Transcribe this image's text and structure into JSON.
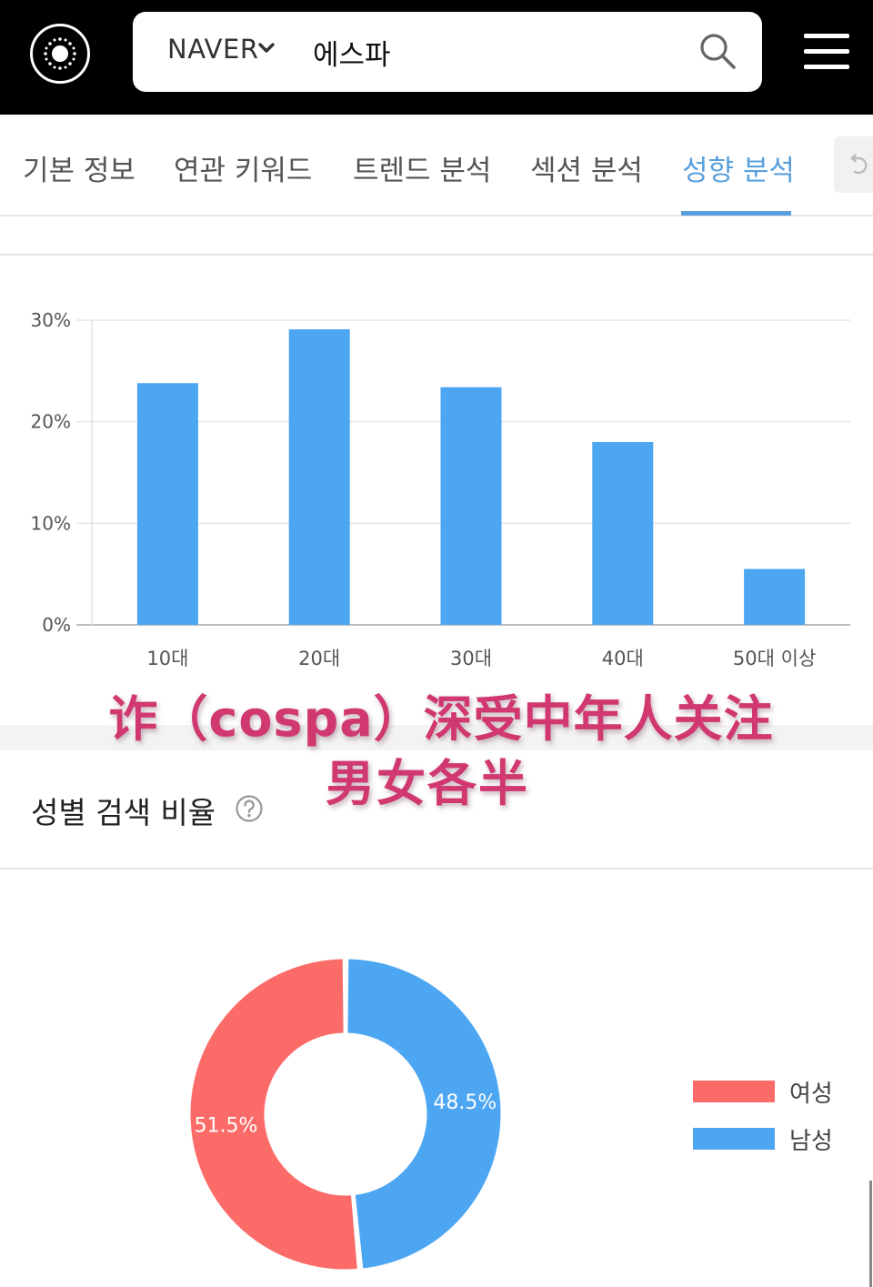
{
  "header": {
    "engine_label": "NAVER",
    "query": "에스파",
    "icons": [
      "logo-icon",
      "chevron-down-icon",
      "search-icon",
      "menu-icon"
    ]
  },
  "tabs": [
    {
      "label": "기본 정보",
      "active": false
    },
    {
      "label": "연관 키워드",
      "active": false
    },
    {
      "label": "트렌드 분석",
      "active": false
    },
    {
      "label": "섹션 분석",
      "active": false
    },
    {
      "label": "성향 분석",
      "active": true
    }
  ],
  "colors": {
    "accent": "#5aa0dc",
    "bar": "#4da6f2",
    "female": "#fb6c69",
    "male": "#4da6f2",
    "caption": "#d0386f"
  },
  "age_chart": {
    "type": "bar",
    "categories": [
      "10대",
      "20대",
      "30대",
      "40대",
      "50대 이상"
    ],
    "values": [
      23.8,
      29.1,
      23.4,
      18.0,
      5.5
    ],
    "yticks": [
      "0%",
      "10%",
      "20%",
      "30%"
    ],
    "ylim": [
      0,
      30
    ],
    "grid": true
  },
  "overlay": {
    "line1": "诈（cospa）深受中年人关注",
    "line2": "男女各半"
  },
  "gender": {
    "title": "성별 검색 비율",
    "help_icon": "question-circle-icon",
    "chart_data": {
      "type": "pie",
      "labels": [
        "여성",
        "남성"
      ],
      "values": [
        51.5,
        48.5
      ],
      "value_labels": [
        "51.5%",
        "48.5%"
      ],
      "legend_position": "right"
    }
  }
}
